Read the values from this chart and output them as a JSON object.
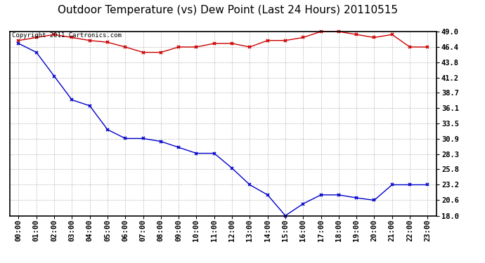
{
  "title": "Outdoor Temperature (vs) Dew Point (Last 24 Hours) 20110515",
  "copyright_text": "Copyright 2011 Cartronics.com",
  "x_labels": [
    "00:00",
    "01:00",
    "02:00",
    "03:00",
    "04:00",
    "05:00",
    "06:00",
    "07:00",
    "08:00",
    "09:00",
    "10:00",
    "11:00",
    "12:00",
    "13:00",
    "14:00",
    "15:00",
    "16:00",
    "17:00",
    "18:00",
    "19:00",
    "20:00",
    "21:00",
    "22:00",
    "23:00"
  ],
  "temp_data": [
    47.5,
    48.0,
    48.5,
    48.0,
    47.5,
    47.2,
    46.4,
    45.5,
    45.5,
    46.4,
    46.4,
    47.0,
    47.0,
    46.4,
    47.5,
    47.5,
    48.0,
    49.0,
    49.0,
    48.5,
    48.0,
    48.5,
    46.4,
    46.4
  ],
  "dew_data": [
    47.0,
    45.5,
    41.5,
    37.5,
    36.5,
    32.5,
    31.0,
    31.0,
    30.5,
    29.5,
    28.5,
    28.5,
    26.0,
    23.2,
    21.5,
    18.0,
    20.0,
    21.5,
    21.5,
    21.0,
    20.6,
    23.2,
    23.2,
    23.2
  ],
  "temp_color": "#cc0000",
  "dew_color": "#0000cc",
  "y_ticks": [
    18.0,
    20.6,
    23.2,
    25.8,
    28.3,
    30.9,
    33.5,
    36.1,
    38.7,
    41.2,
    43.8,
    46.4,
    49.0
  ],
  "y_min": 18.0,
  "y_max": 49.0,
  "bg_color": "#ffffff",
  "plot_bg_color": "#ffffff",
  "grid_color": "#bbbbbb",
  "title_fontsize": 11,
  "copyright_fontsize": 6.5,
  "tick_fontsize": 7.5,
  "marker_size": 3.5,
  "line_width": 1.0
}
